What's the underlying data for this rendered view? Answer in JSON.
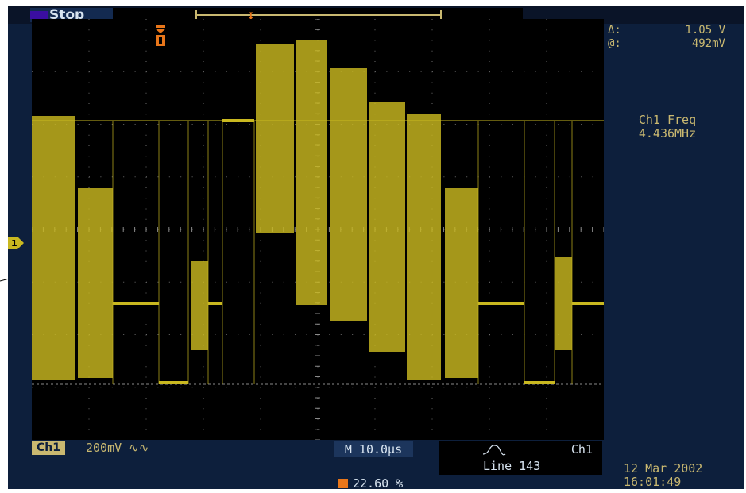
{
  "status": {
    "run_state": "Stop"
  },
  "cursor_readout": {
    "delta_symbol": "Δ:",
    "delta_value": "1.05 V",
    "at_symbol": "@:",
    "at_value": "492mV"
  },
  "measurement": {
    "label": "Ch1 Freq",
    "value": "4.436MHz"
  },
  "channel": {
    "badge": "Ch1",
    "volts_per_div": "200mV ∿∿"
  },
  "timebase": {
    "label": "M 10.0µs"
  },
  "trigger": {
    "source": "Ch1",
    "mode": "Line 143",
    "position": "22.60 %"
  },
  "datetime": {
    "date": "12 Mar 2002",
    "time": "16:01:49"
  },
  "colors": {
    "trace": "#c9b820",
    "trigger_marker": "#e8761a",
    "panel": "#0d1f3c",
    "graticule_bg": "#000000"
  }
}
